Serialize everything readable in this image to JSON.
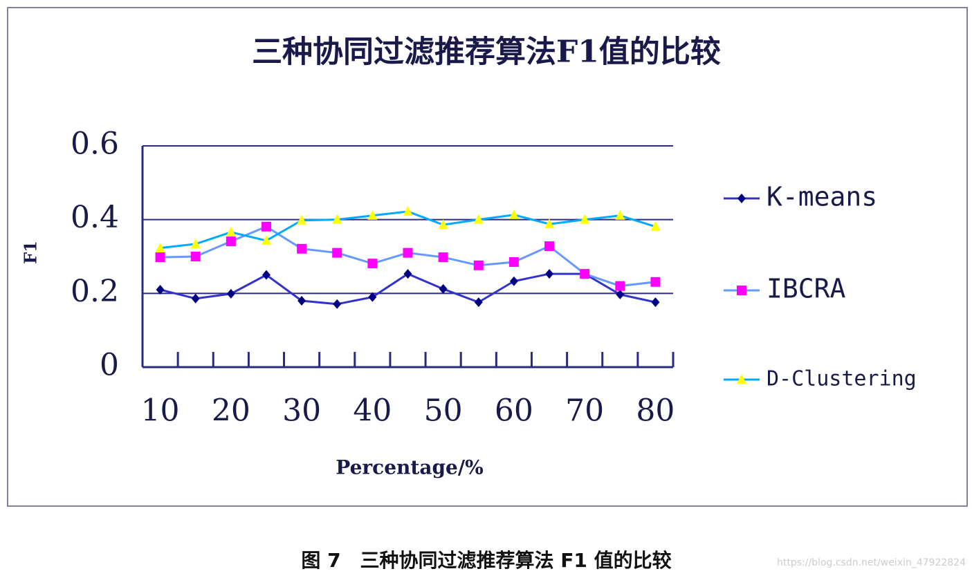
{
  "chart_data": {
    "type": "line",
    "title": "三种协同过滤推荐算法F1值的比较",
    "x_label": "Percentage/%",
    "y_label": "F1",
    "categories": [
      "10",
      null,
      "20",
      null,
      "30",
      null,
      "40",
      null,
      "50",
      null,
      "60",
      null,
      "70",
      null,
      "80"
    ],
    "series": [
      {
        "name": "K-means",
        "color": "#3333cc",
        "marker": "diamond",
        "marker_color": "#000080",
        "values": [
          0.21,
          0.186,
          0.199,
          0.25,
          0.18,
          0.171,
          0.19,
          0.253,
          0.212,
          0.176,
          0.233,
          0.253,
          0.253,
          0.197,
          0.176
        ]
      },
      {
        "name": "IBCRA",
        "color": "#6699ff",
        "marker": "square",
        "marker_color": "#ff00ff",
        "values": [
          0.298,
          0.3,
          0.341,
          0.381,
          0.321,
          0.31,
          0.281,
          0.31,
          0.298,
          0.276,
          0.285,
          0.328,
          0.253,
          0.22,
          0.231
        ]
      },
      {
        "name": "D-Clustering",
        "color": "#00aaff",
        "marker": "triangle",
        "marker_color": "#ffff00",
        "values": [
          0.323,
          0.334,
          0.366,
          0.343,
          0.398,
          0.4,
          0.411,
          0.422,
          0.386,
          0.4,
          0.413,
          0.388,
          0.4,
          0.411,
          0.381
        ]
      }
    ],
    "ylim": [
      0,
      0.6
    ],
    "yticks": [
      0,
      0.2,
      0.4,
      0.6
    ],
    "grid": true,
    "legend": "right"
  },
  "caption": "图 7　三种协同过滤推荐算法 F1 值的比较",
  "watermark": "https://blog.csdn.net/weixin_47922824"
}
